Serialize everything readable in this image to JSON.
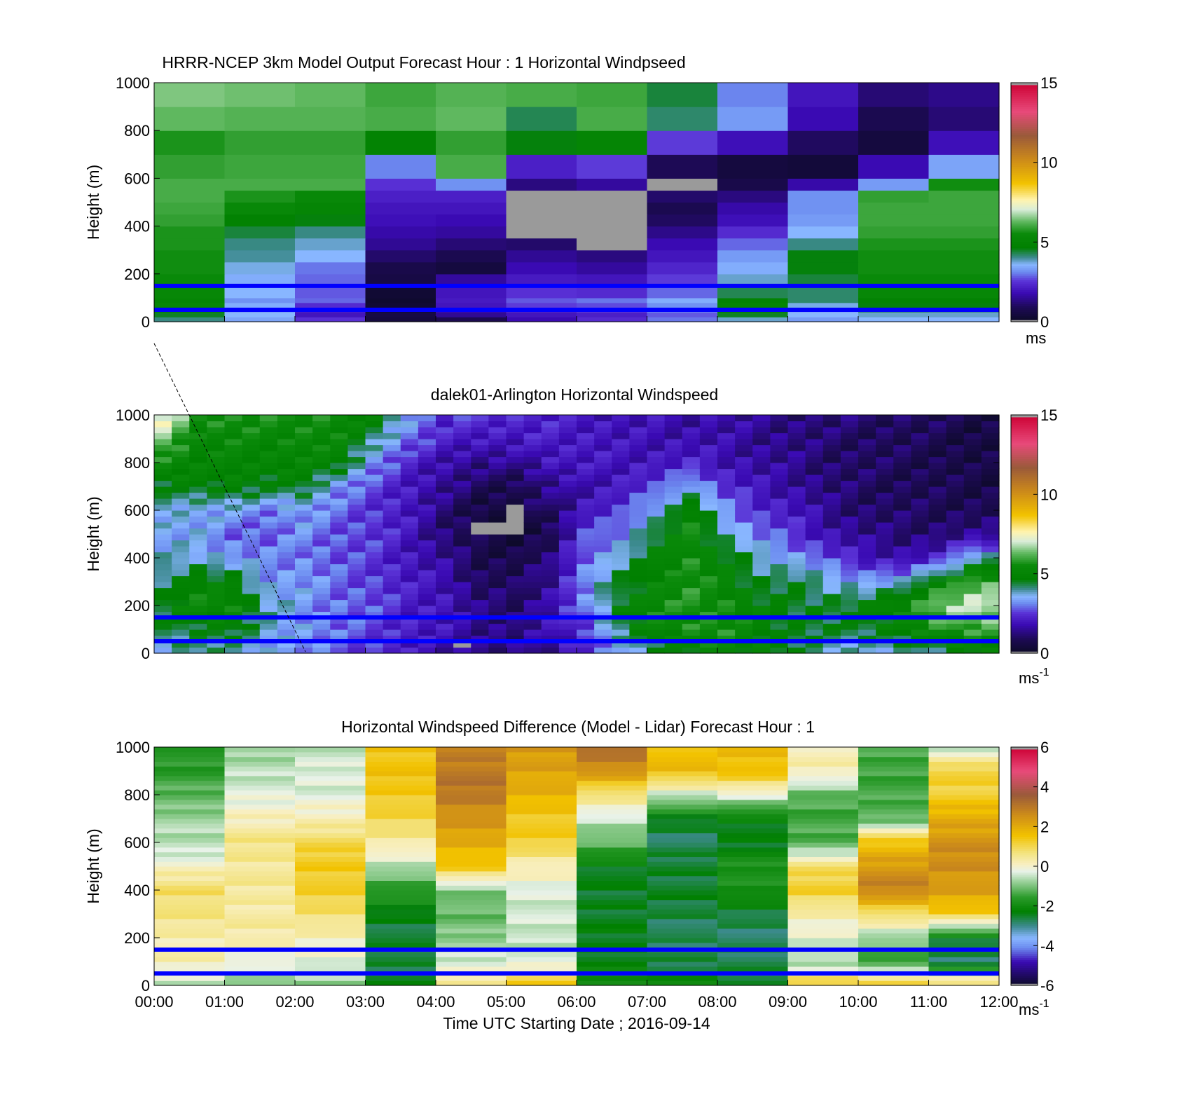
{
  "figure": {
    "xlabel": "Time UTC  Starting Date ; 2016-09-14",
    "xticks": [
      "00:00",
      "01:00",
      "02:00",
      "03:00",
      "04:00",
      "05:00",
      "06:00",
      "07:00",
      "08:00",
      "09:00",
      "10:00",
      "11:00",
      "12:00"
    ]
  },
  "chart_data": [
    {
      "type": "heatmap",
      "title": "HRRR-NCEP 3km Model Output   Forecast Hour : 1 Horizontal Windpseed",
      "ylabel": "Height (m)",
      "xlim": [
        "00:00",
        "12:00"
      ],
      "ylim": [
        0,
        1000
      ],
      "yticks": [
        0,
        200,
        400,
        600,
        800,
        1000
      ],
      "grid": false,
      "colorbar": {
        "ticks": [
          "0",
          "5",
          "10",
          "15"
        ],
        "range": [
          0,
          15
        ],
        "unit": "ms",
        "colormap": "wind"
      },
      "reference_lines_m": [
        50,
        150
      ],
      "reference_line_color": "#0000ff",
      "heights_m": [
        20,
        40,
        60,
        80,
        100,
        150,
        200,
        250,
        300,
        350,
        400,
        450,
        500,
        550,
        600,
        700,
        800,
        900,
        1000
      ],
      "hours": [
        "00:00",
        "01:00",
        "02:00",
        "03:00",
        "04:00",
        "05:00",
        "06:00",
        "07:00",
        "08:00",
        "09:00",
        "10:00",
        "11:00"
      ],
      "windspeed_ms": [
        [
          4.1,
          3.4,
          2.5,
          0.5,
          0.8,
          1.8,
          2.4,
          3.0,
          3.8,
          3.3,
          3.6,
          3.6
        ],
        [
          4.5,
          3.6,
          2.0,
          0.6,
          1.5,
          2.0,
          2.2,
          2.8,
          4.5,
          3.6,
          3.8,
          3.8
        ],
        [
          4.9,
          3.3,
          2.2,
          0.4,
          1.8,
          2.3,
          2.6,
          3.1,
          4.8,
          3.4,
          4.2,
          4.1
        ],
        [
          5.3,
          3.5,
          2.4,
          0.3,
          2.0,
          2.6,
          2.7,
          3.2,
          5.1,
          3.7,
          4.6,
          4.6
        ],
        [
          5.1,
          3.2,
          2.9,
          0.2,
          2.1,
          2.8,
          3.0,
          3.5,
          4.9,
          4.2,
          4.9,
          4.9
        ],
        [
          5.3,
          3.6,
          2.8,
          0.3,
          2.0,
          2.5,
          2.4,
          2.9,
          4.3,
          4.2,
          5.3,
          5.3
        ],
        [
          5.5,
          3.5,
          2.9,
          0.6,
          1.6,
          2.1,
          2.0,
          2.6,
          3.8,
          4.4,
          5.5,
          5.5
        ],
        [
          5.6,
          3.7,
          3.0,
          0.7,
          0.5,
          1.8,
          1.6,
          2.3,
          3.5,
          4.6,
          5.6,
          5.6
        ],
        [
          5.6,
          4.0,
          3.6,
          1.1,
          0.8,
          1.5,
          1.3,
          2.0,
          3.3,
          4.6,
          5.6,
          5.6
        ],
        [
          5.7,
          4.1,
          3.8,
          1.5,
          1.2,
          1.1,
          -1,
          1.8,
          2.9,
          4.1,
          5.7,
          5.7
        ],
        [
          5.7,
          4.4,
          4.1,
          1.7,
          1.6,
          -1,
          -1,
          1.4,
          2.4,
          3.6,
          5.9,
          5.9
        ],
        [
          5.9,
          4.8,
          4.6,
          1.9,
          1.8,
          -1,
          -1,
          1.0,
          1.9,
          3.3,
          6.0,
          6.0
        ],
        [
          6.0,
          5.4,
          5.1,
          2.0,
          2.0,
          -1,
          -1,
          0.8,
          1.7,
          3.2,
          6.0,
          6.0
        ],
        [
          6.1,
          5.7,
          5.4,
          2.2,
          2.2,
          -1,
          -1,
          1.1,
          1.3,
          3.2,
          5.9,
          6.0
        ],
        [
          6.1,
          6.1,
          6.1,
          2.5,
          3.2,
          1.3,
          1.6,
          -1,
          0.7,
          1.7,
          3.3,
          5.6
        ],
        [
          5.9,
          6.0,
          6.0,
          3.1,
          6.1,
          2.2,
          2.6,
          0.9,
          0.5,
          0.4,
          1.8,
          3.4
        ],
        [
          5.7,
          5.9,
          5.9,
          4.9,
          5.9,
          4.6,
          5.1,
          2.6,
          1.9,
          1.0,
          0.5,
          1.9
        ],
        [
          6.3,
          6.2,
          6.2,
          6.1,
          6.3,
          4.3,
          6.1,
          4.2,
          3.3,
          1.8,
          0.8,
          1.2
        ],
        [
          6.5,
          6.4,
          6.3,
          6.0,
          6.2,
          6.1,
          6.0,
          4.4,
          3.1,
          2.0,
          1.2,
          1.4
        ]
      ]
    },
    {
      "type": "heatmap",
      "title": "dalek01-Arlington  Horizontal Windspeed",
      "ylabel": "Height (m)",
      "xlim": [
        "00:00",
        "12:00"
      ],
      "ylim": [
        0,
        1000
      ],
      "yticks": [
        0,
        200,
        400,
        600,
        800,
        1000
      ],
      "grid": false,
      "colorbar": {
        "ticks": [
          "0",
          "5",
          "10",
          "15"
        ],
        "range": [
          0,
          15
        ],
        "unit": "ms",
        "unit_exponent": "-1",
        "colormap": "wind"
      },
      "reference_lines_m": [
        50,
        150
      ],
      "reference_line_color": "#0000ff",
      "time_step_minutes": 15,
      "last_time": "11:45",
      "height_step_m": 25,
      "missing_regions": [
        {
          "time": [
            "05:00",
            "05:15"
          ],
          "height_m": [
            500,
            625
          ]
        },
        {
          "time": [
            "04:30",
            "05:00"
          ],
          "height_m": [
            490,
            550
          ]
        },
        {
          "time": [
            "04:15",
            "04:30"
          ],
          "height_m": [
            20,
            40
          ]
        }
      ],
      "profile_keys_height_m": [
        0,
        100,
        200,
        300,
        400,
        500,
        600,
        700,
        800,
        900,
        1000
      ],
      "profile_keys_windspeed_ms": [
        [
          3.8,
          4.3,
          4.6,
          4.3,
          3.7,
          3.4,
          3.9,
          4.5,
          5.5,
          6.5,
          7.5
        ],
        [
          4.0,
          4.6,
          5.4,
          5.0,
          3.8,
          3.4,
          3.5,
          4.8,
          5.0,
          5.2,
          5.8
        ],
        [
          3.8,
          4.7,
          5.4,
          4.8,
          3.3,
          2.9,
          3.4,
          4.9,
          5.2,
          5.3,
          5.7
        ],
        [
          3.4,
          3.8,
          3.9,
          3.4,
          3.1,
          2.8,
          3.1,
          4.5,
          5.1,
          5.3,
          5.5
        ],
        [
          3.2,
          3.4,
          3.3,
          3.3,
          3.1,
          3.2,
          3.3,
          4.7,
          5.1,
          5.4,
          5.6
        ],
        [
          2.8,
          2.9,
          3.0,
          2.9,
          2.7,
          2.8,
          2.9,
          3.2,
          5.0,
          5.2,
          5.5
        ],
        [
          2.5,
          2.6,
          2.7,
          2.6,
          2.5,
          2.5,
          2.5,
          2.6,
          3.2,
          4.2,
          5.0
        ],
        [
          2.0,
          2.2,
          2.2,
          2.1,
          2.0,
          2.0,
          2.0,
          2.1,
          2.2,
          2.9,
          3.6
        ],
        [
          1.6,
          1.9,
          2.0,
          1.9,
          1.5,
          1.2,
          1.2,
          1.5,
          1.8,
          2.2,
          2.3
        ],
        [
          1.4,
          1.5,
          1.3,
          1.0,
          0.8,
          0.6,
          0.6,
          0.9,
          1.4,
          2.1,
          2.6
        ],
        [
          1.3,
          1.3,
          1.1,
          0.9,
          0.7,
          0.5,
          0.5,
          0.8,
          1.5,
          2.0,
          2.3
        ],
        [
          1.6,
          1.8,
          1.8,
          1.6,
          1.2,
          0.8,
          1.1,
          1.4,
          2.0,
          2.2,
          2.2
        ],
        [
          2.2,
          2.6,
          3.0,
          3.2,
          3.0,
          2.6,
          2.0,
          1.8,
          2.0,
          2.1,
          2.1
        ],
        [
          3.2,
          4.2,
          4.8,
          4.4,
          3.8,
          3.2,
          2.5,
          2.1,
          2.0,
          1.9,
          1.9
        ],
        [
          4.2,
          5.3,
          5.4,
          5.2,
          5.0,
          4.5,
          3.6,
          2.6,
          2.0,
          1.9,
          1.8
        ],
        [
          4.8,
          5.6,
          5.7,
          5.6,
          5.6,
          5.5,
          5.0,
          3.6,
          2.2,
          1.8,
          1.7
        ],
        [
          5.1,
          5.6,
          5.5,
          5.2,
          4.8,
          4.0,
          3.2,
          2.4,
          1.9,
          1.7,
          1.7
        ],
        [
          4.9,
          5.0,
          4.8,
          4.4,
          3.8,
          3.0,
          2.4,
          1.9,
          1.6,
          1.5,
          1.5
        ],
        [
          4.4,
          4.6,
          4.6,
          4.4,
          3.4,
          2.4,
          2.0,
          1.6,
          1.4,
          1.3,
          1.3
        ],
        [
          3.8,
          4.4,
          4.5,
          3.8,
          2.6,
          1.8,
          1.4,
          1.2,
          1.1,
          1.1,
          1.2
        ],
        [
          3.6,
          4.6,
          4.8,
          3.4,
          2.0,
          1.4,
          1.1,
          1.0,
          1.0,
          1.0,
          1.1
        ],
        [
          3.8,
          5.0,
          5.4,
          3.6,
          1.8,
          1.2,
          1.0,
          0.9,
          0.9,
          0.9,
          1.0
        ],
        [
          4.2,
          5.6,
          6.4,
          5.2,
          2.2,
          1.2,
          0.9,
          0.8,
          0.8,
          0.8,
          0.9
        ],
        [
          4.6,
          6.0,
          7.0,
          6.0,
          4.0,
          1.4,
          0.9,
          0.7,
          0.6,
          0.6,
          0.7
        ]
      ]
    },
    {
      "type": "heatmap",
      "title": "Horizontal Windspeed Difference (Model - Lidar) Forecast Hour : 1",
      "ylabel": "Height (m)",
      "xlabel": "Time UTC  Starting Date ; 2016-09-14",
      "xlim": [
        "00:00",
        "12:00"
      ],
      "ylim": [
        0,
        1000
      ],
      "yticks": [
        0,
        200,
        400,
        600,
        800,
        1000
      ],
      "grid": false,
      "colorbar": {
        "ticks": [
          "-6",
          "-4",
          "-2",
          "0",
          "2",
          "4",
          "6"
        ],
        "range": [
          -6,
          6
        ],
        "unit": "ms",
        "unit_exponent": "-1",
        "colormap": "difference"
      },
      "reference_lines_m": [
        50,
        150
      ],
      "reference_line_color": "#0000ff",
      "hours": [
        "00:00",
        "01:00",
        "02:00",
        "03:00",
        "04:00",
        "05:00",
        "06:00",
        "07:00",
        "08:00",
        "09:00",
        "10:00",
        "11:00"
      ],
      "profile_keys_height_m": [
        0,
        100,
        200,
        300,
        400,
        500,
        600,
        700,
        800,
        900,
        1000
      ],
      "difference_keys_ms": [
        [
          -0.5,
          0.2,
          0.3,
          0.6,
          0.9,
          0.0,
          -0.6,
          -0.7,
          -1.2,
          -1.6,
          -1.6
        ],
        [
          -1.0,
          -0.2,
          0.3,
          0.4,
          0.4,
          0.5,
          0.6,
          0.2,
          -0.3,
          -0.5,
          -0.9
        ],
        [
          -0.9,
          -0.2,
          0.1,
          0.8,
          1.2,
          1.4,
          1.0,
          0.2,
          -0.3,
          -0.3,
          -0.6
        ],
        [
          -2.4,
          -2.6,
          -2.6,
          -2.4,
          -1.6,
          -0.6,
          0.4,
          1.0,
          1.4,
          1.5,
          1.5
        ],
        [
          0.8,
          -0.4,
          -0.8,
          -1.2,
          -0.9,
          1.4,
          2.0,
          2.4,
          3.0,
          3.0,
          2.8
        ],
        [
          1.5,
          -0.4,
          -0.5,
          -0.4,
          -0.3,
          0.2,
          1.2,
          1.4,
          1.8,
          2.2,
          2.3
        ],
        [
          -1.8,
          -2.3,
          -2.4,
          -2.4,
          -2.5,
          -2.3,
          -1.2,
          -0.4,
          0.6,
          2.5,
          3.2
        ],
        [
          -2.2,
          -2.6,
          -2.8,
          -2.6,
          -2.5,
          -2.5,
          -2.8,
          -2.4,
          -0.4,
          1.6,
          1.7
        ],
        [
          -2.4,
          -2.7,
          -2.8,
          -2.6,
          -1.8,
          -1.8,
          -2.4,
          -2.3,
          -0.2,
          1.6,
          1.7
        ],
        [
          1.5,
          -0.8,
          -0.2,
          0.2,
          1.3,
          0.8,
          -1.3,
          -1.4,
          -1.2,
          0.3,
          0.2
        ],
        [
          1.4,
          -1.6,
          -0.8,
          0.8,
          2.8,
          2.4,
          1.5,
          -1.2,
          -1.4,
          -1.4,
          -1.4
        ],
        [
          1.2,
          -2.8,
          -2.4,
          1.3,
          2.2,
          2.6,
          2.5,
          2.0,
          1.2,
          1.2,
          -0.6
        ]
      ]
    }
  ]
}
